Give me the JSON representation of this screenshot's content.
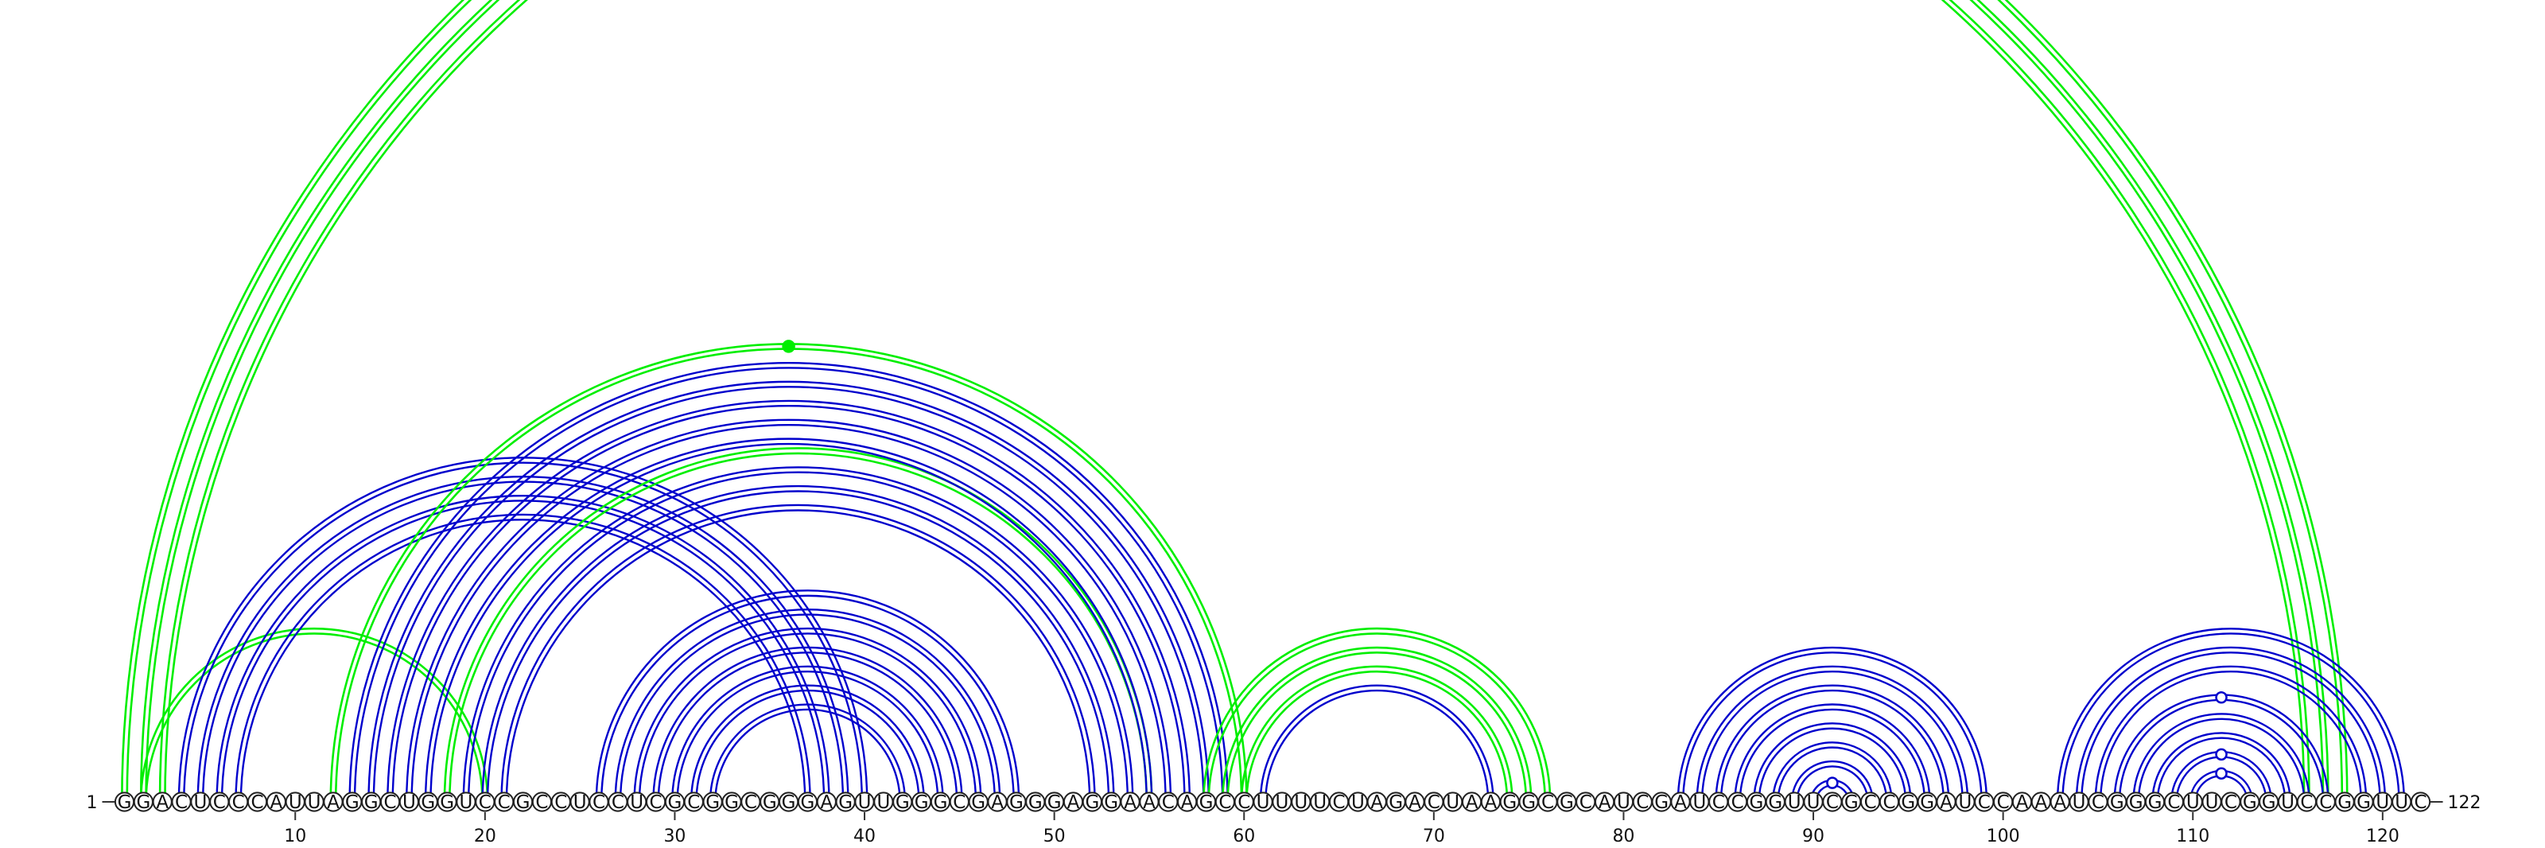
{
  "colors": {
    "base_pair_arc": "#0000cc",
    "pseudoknot_arc": "#00ee00",
    "nucleotide_outline": "#222222",
    "background": "#ffffff"
  },
  "sequence": {
    "start_label": "1",
    "end_label": "122",
    "residues": "GGACUCCCAUUAGGCUGGUCCGCCUCCUCGCGGCGGGAGUUGGGCGAGGGAGGAACAGCCUUUUCUAGACUAAGGCGCAUCGAUCCGGUUCGCCGGAUCCAAAUCGGGCUUCGGUCCGGUUC"
  },
  "axis": {
    "ticks": [
      "10",
      "20",
      "30",
      "40",
      "50",
      "60",
      "70",
      "80",
      "90",
      "100",
      "110",
      "120"
    ]
  },
  "chart_data": {
    "type": "arc",
    "length": 122,
    "groups": [
      {
        "kind": "pseudoknot",
        "pairs": [
          [
            1,
            118
          ],
          [
            2,
            117
          ],
          [
            3,
            116
          ]
        ]
      },
      {
        "kind": "pseudoknot",
        "pairs": [
          [
            2,
            20
          ]
        ]
      },
      {
        "kind": "base-pair",
        "pairs": [
          [
            4,
            40
          ],
          [
            5,
            39
          ],
          [
            6,
            38
          ],
          [
            7,
            37
          ]
        ]
      },
      {
        "kind": "pseudoknot",
        "pairs": [
          [
            12,
            60
          ],
          [
            18,
            55
          ]
        ]
      },
      {
        "kind": "base-pair",
        "pairs": [
          [
            13,
            59
          ],
          [
            14,
            58
          ],
          [
            15,
            57
          ],
          [
            16,
            56
          ],
          [
            17,
            55
          ],
          [
            19,
            54
          ],
          [
            20,
            53
          ],
          [
            21,
            52
          ]
        ]
      },
      {
        "kind": "base-pair",
        "pairs": [
          [
            26,
            48
          ],
          [
            27,
            47
          ],
          [
            28,
            46
          ],
          [
            29,
            45
          ],
          [
            30,
            44
          ],
          [
            31,
            43
          ],
          [
            32,
            42
          ]
        ]
      },
      {
        "kind": "pseudoknot",
        "pairs": [
          [
            58,
            76
          ],
          [
            59,
            75
          ],
          [
            60,
            74
          ]
        ]
      },
      {
        "kind": "base-pair",
        "pairs": [
          [
            61,
            73
          ]
        ]
      },
      {
        "kind": "base-pair",
        "pairs": [
          [
            83,
            99
          ],
          [
            84,
            98
          ],
          [
            85,
            97
          ],
          [
            86,
            96
          ],
          [
            87,
            95
          ],
          [
            88,
            94
          ],
          [
            89,
            93
          ],
          [
            90,
            92
          ]
        ]
      },
      {
        "kind": "base-pair",
        "pairs": [
          [
            103,
            121
          ],
          [
            104,
            120
          ],
          [
            105,
            119
          ],
          [
            106,
            117
          ],
          [
            107,
            116
          ],
          [
            108,
            115
          ],
          [
            109,
            114
          ],
          [
            110,
            113
          ]
        ]
      }
    ],
    "markers": [
      {
        "kind": "pseudoknot",
        "filled": true,
        "between": [
          12,
          60
        ]
      },
      {
        "kind": "base-pair",
        "filled": false,
        "between": [
          90,
          92
        ]
      },
      {
        "kind": "base-pair",
        "filled": false,
        "between": [
          110,
          113
        ]
      },
      {
        "kind": "base-pair",
        "filled": false,
        "between": [
          109,
          114
        ]
      },
      {
        "kind": "base-pair",
        "filled": false,
        "between": [
          106,
          117
        ]
      }
    ]
  }
}
